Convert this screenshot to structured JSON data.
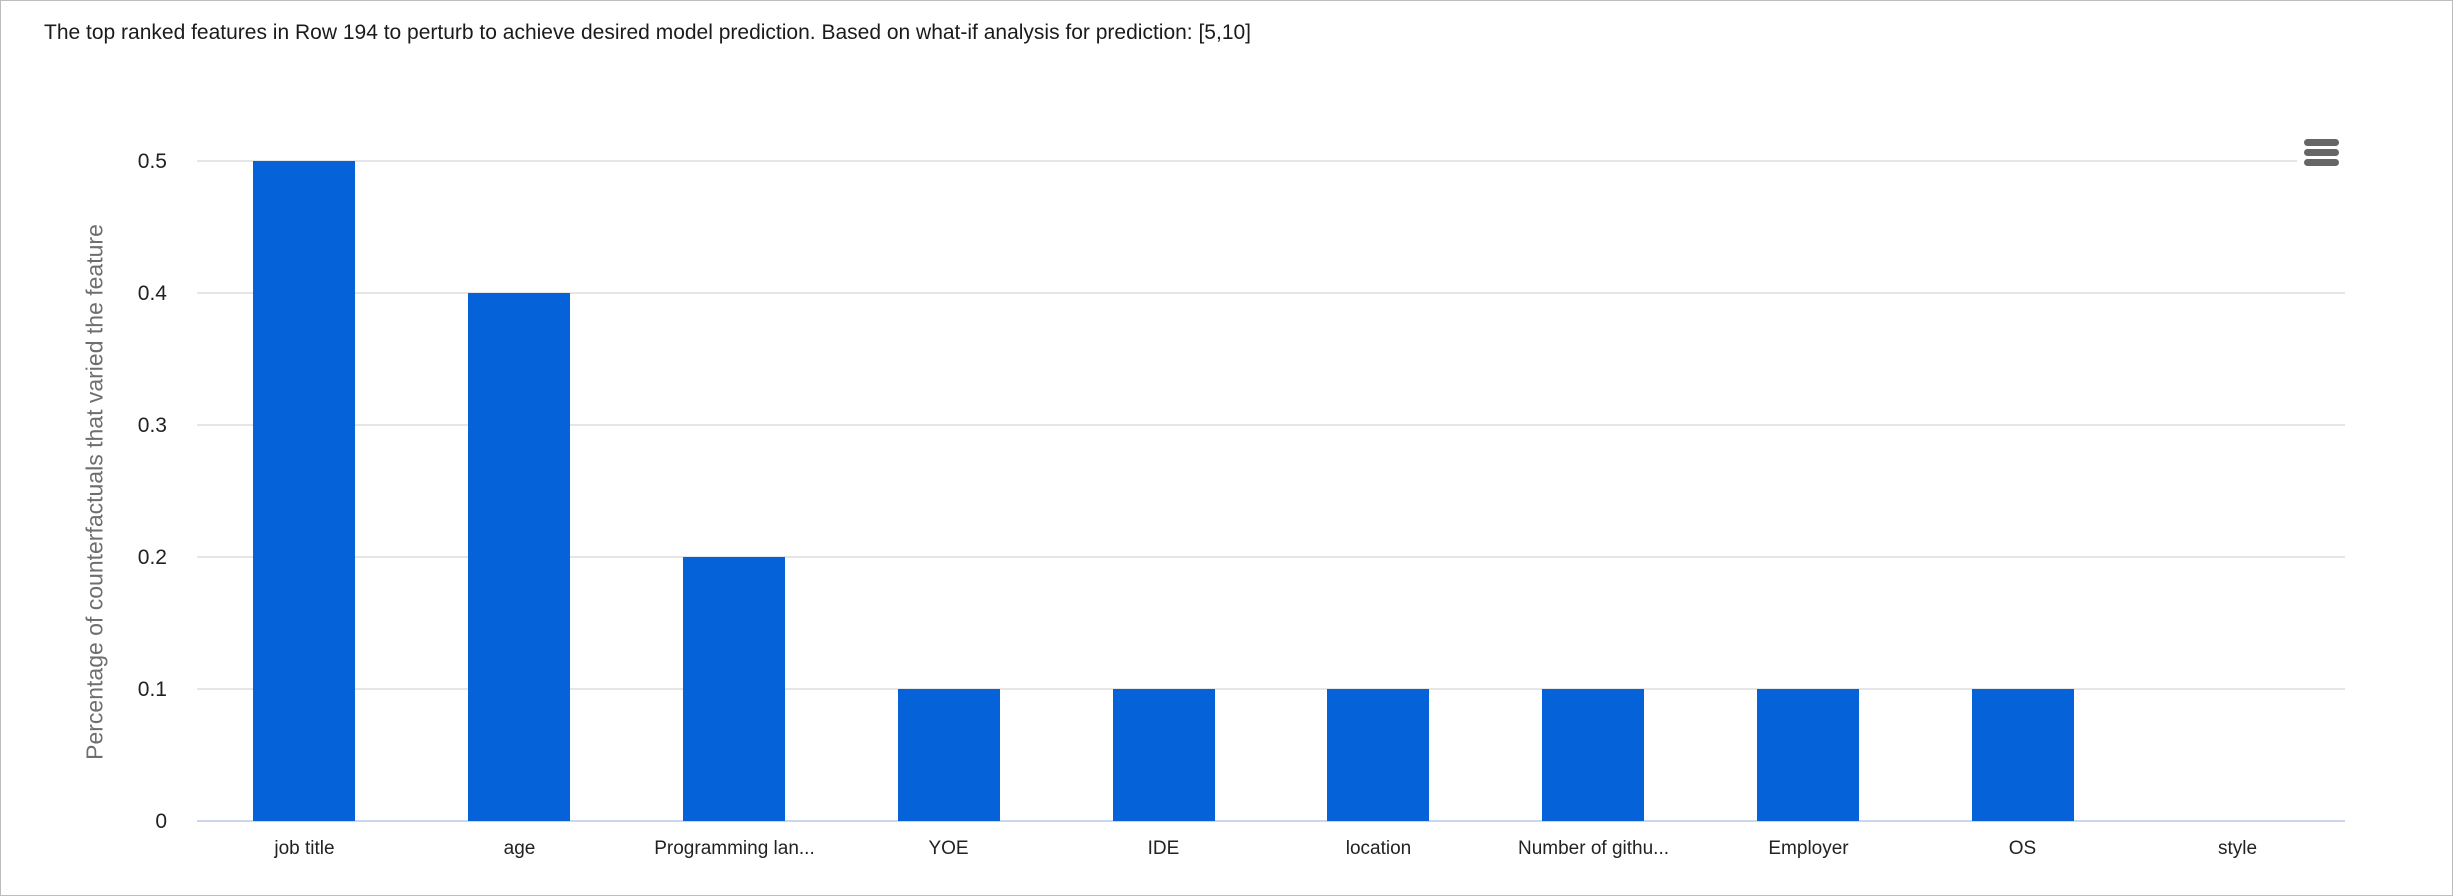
{
  "chart_data": {
    "type": "bar",
    "title": "The top ranked features in Row 194 to perturb to achieve desired model prediction. Based on what-if analysis for prediction: [5,10]",
    "categories": [
      "job title",
      "age",
      "Programming lan...",
      "YOE",
      "IDE",
      "location",
      "Number of githu...",
      "Employer",
      "OS",
      "style"
    ],
    "values": [
      0.5,
      0.4,
      0.2,
      0.1,
      0.1,
      0.1,
      0.1,
      0.1,
      0.1,
      0
    ],
    "xlabel": "",
    "ylabel": "Percentage of counterfactuals that varied the feature",
    "ylim": [
      0,
      0.5
    ],
    "yticks": [
      "0",
      "0.1",
      "0.2",
      "0.3",
      "0.4",
      "0.5"
    ],
    "grid": true,
    "legend": "none"
  },
  "icons": {
    "context_menu": "hamburger-menu-icon"
  },
  "colors": {
    "bar": "#0562d9",
    "gridline": "#e6e6e6",
    "axis_line": "#ccd6eb",
    "tick_label": "#222222",
    "axis_title_text": "#6e6e6e",
    "chart_title_text": "#1b1b1b",
    "menu_icon": "#666666",
    "background": "#ffffff"
  }
}
